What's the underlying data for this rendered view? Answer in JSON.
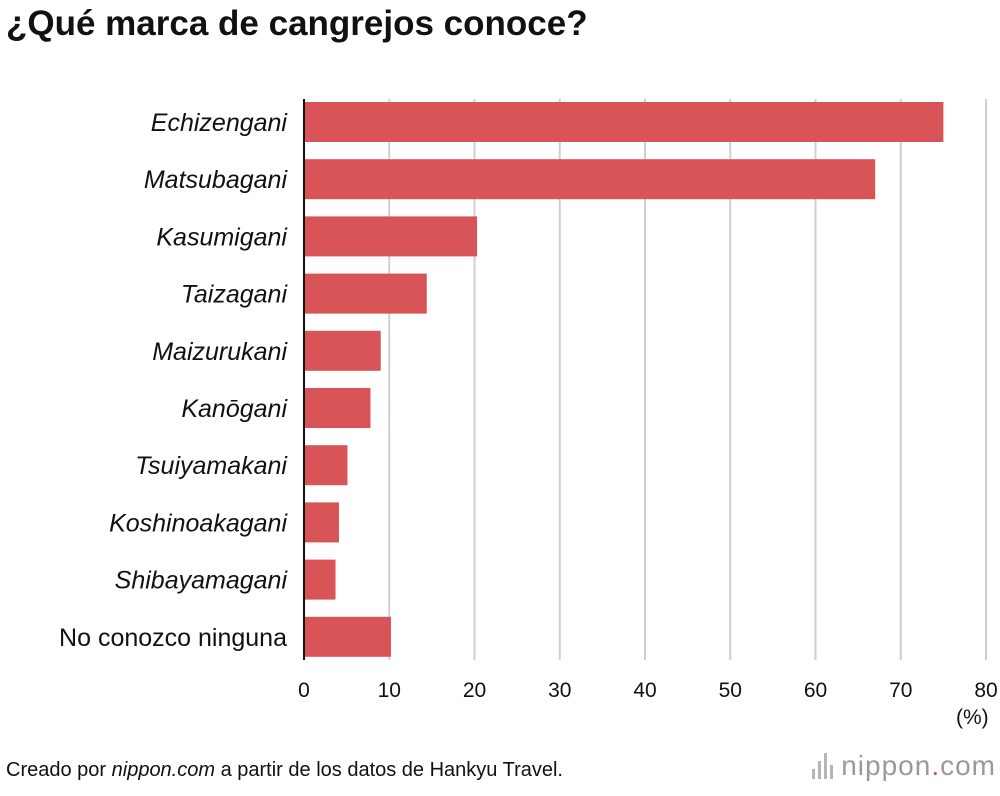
{
  "title": "¿Qué marca de cangrejos conoce?",
  "colors": {
    "bar": "#d95457",
    "grid": "#cfcfcf",
    "axis": "#111111",
    "text": "#111111"
  },
  "chart_data": {
    "type": "bar",
    "orientation": "horizontal",
    "categories": [
      "Echizengani",
      "Matsubagani",
      "Kasumigani",
      "Taizagani",
      "Maizurukani",
      "Kanōgani",
      "Tsuiyamakani",
      "Koshinoakagani",
      "Shibayamagani",
      "No conozco ninguna"
    ],
    "category_italic": [
      true,
      true,
      true,
      true,
      true,
      true,
      true,
      true,
      true,
      false
    ],
    "values": [
      75.0,
      67.0,
      20.3,
      14.4,
      9.0,
      7.8,
      5.1,
      4.1,
      3.7,
      10.2
    ],
    "xlim": [
      0,
      80
    ],
    "xticks": [
      "0",
      "10",
      "20",
      "30",
      "40",
      "50",
      "60",
      "70",
      "80"
    ],
    "unit": "(%)",
    "grid": true
  },
  "footer": {
    "prefix": "Creado por ",
    "source_italic": "nippon.com",
    "suffix": " a partir de los datos de Hankyu Travel."
  },
  "logo": {
    "text": "nippon",
    "dot": ".",
    "tld": "com"
  }
}
